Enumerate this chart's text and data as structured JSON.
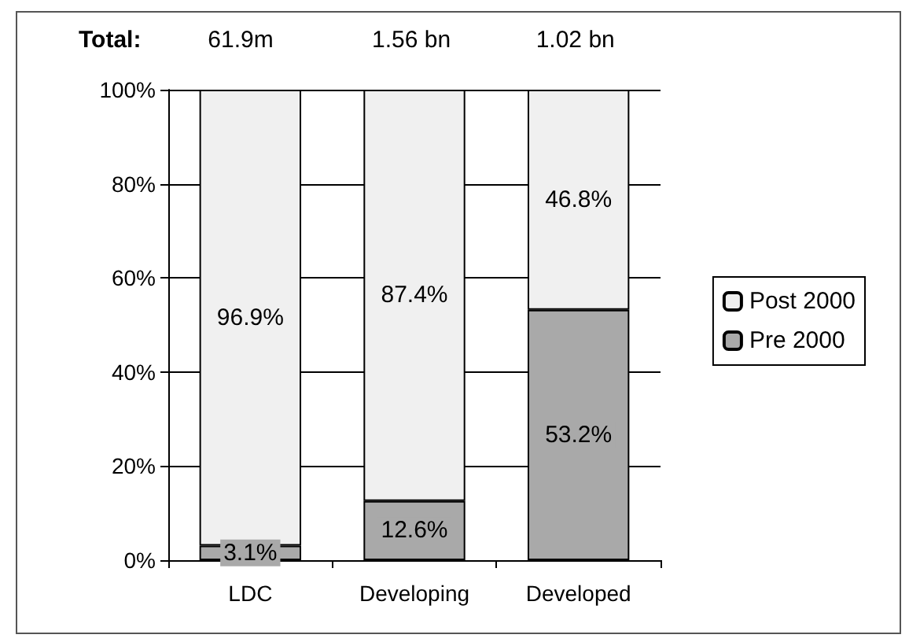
{
  "chart_data": {
    "type": "bar",
    "stacked": true,
    "categories": [
      "LDC",
      "Developing",
      "Developed"
    ],
    "series": [
      {
        "name": "Pre 2000",
        "color": "#a9a9a9",
        "values": [
          3.1,
          12.6,
          53.2
        ],
        "value_labels": [
          "3.1%",
          "12.6%",
          "53.2%"
        ]
      },
      {
        "name": "Post 2000",
        "color": "#f0f0f0",
        "values": [
          96.9,
          87.4,
          46.8
        ],
        "value_labels": [
          "96.9%",
          "87.4%",
          "46.8%"
        ]
      }
    ],
    "ylim": [
      0,
      100
    ],
    "yticks": [
      {
        "value": 0,
        "label": "0%"
      },
      {
        "value": 20,
        "label": "20%"
      },
      {
        "value": 40,
        "label": "40%"
      },
      {
        "value": 60,
        "label": "60%"
      },
      {
        "value": 80,
        "label": "80%"
      },
      {
        "value": 100,
        "label": "100%"
      }
    ],
    "grid": "y",
    "legend": "right",
    "annotations": [
      "Total:",
      "61.9m",
      "1.56 bn",
      "1.02 bn"
    ]
  }
}
